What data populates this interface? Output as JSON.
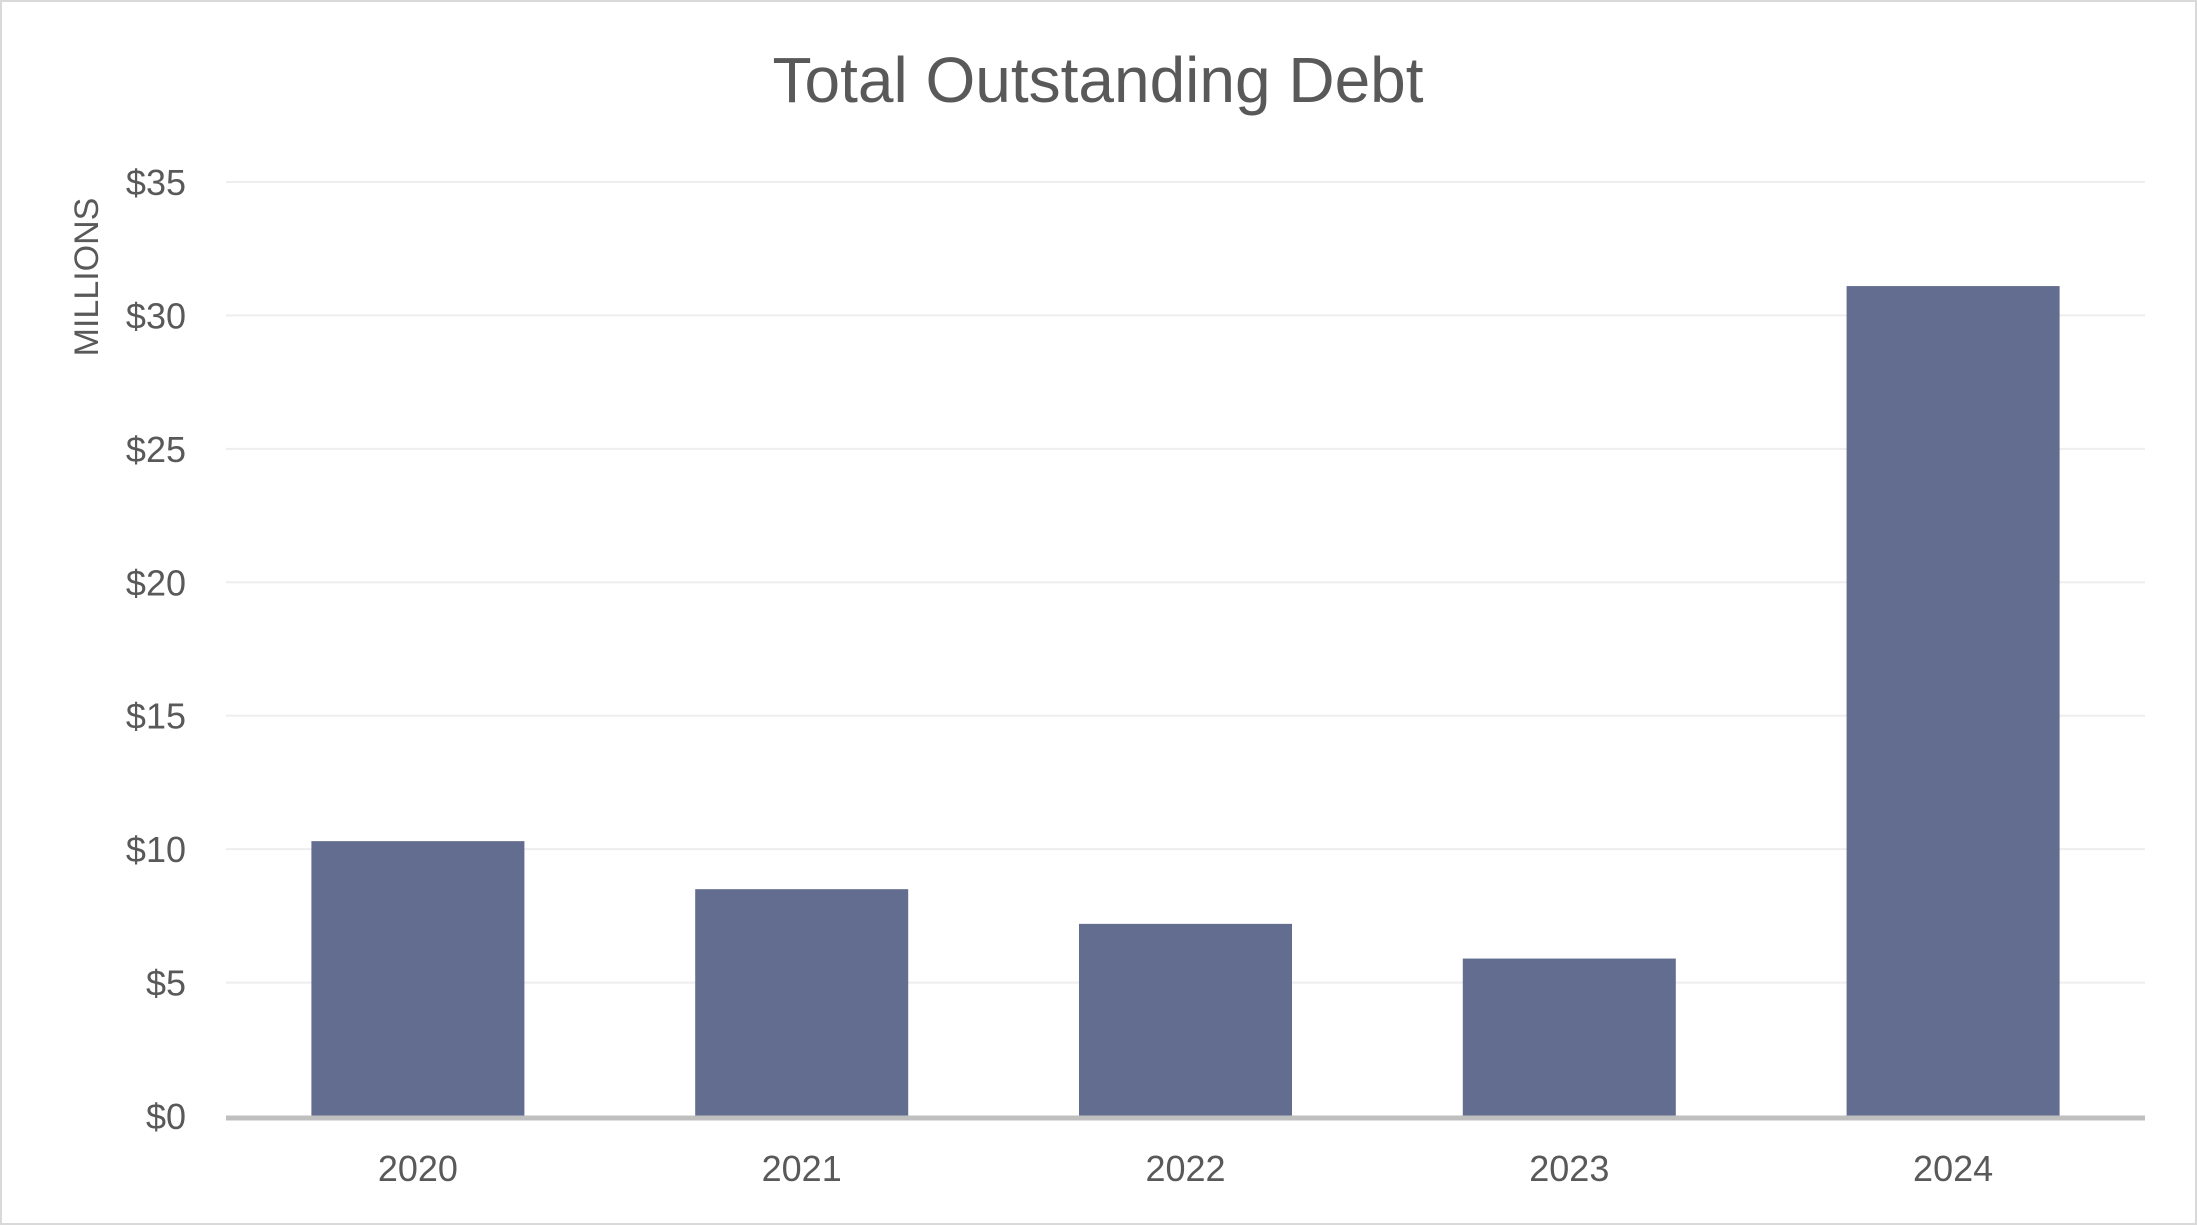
{
  "chart_data": {
    "type": "bar",
    "title": "Total Outstanding Debt",
    "xlabel": "",
    "ylabel": "MILLIONS",
    "categories": [
      "2020",
      "2021",
      "2022",
      "2023",
      "2024"
    ],
    "values": [
      10.3,
      8.5,
      7.2,
      5.9,
      31.1
    ],
    "ylim": [
      0,
      35
    ],
    "yticks": [
      0,
      5,
      10,
      15,
      20,
      25,
      30,
      35
    ],
    "ytick_labels": [
      "$0",
      "$5",
      "$10",
      "$15",
      "$20",
      "$25",
      "$30",
      "$35"
    ],
    "grid": true,
    "legend": "none",
    "colors": {
      "bar": "#636d8f",
      "grid": "#eeeeee",
      "axis": "#bfbfbf",
      "text": "#595959"
    }
  }
}
